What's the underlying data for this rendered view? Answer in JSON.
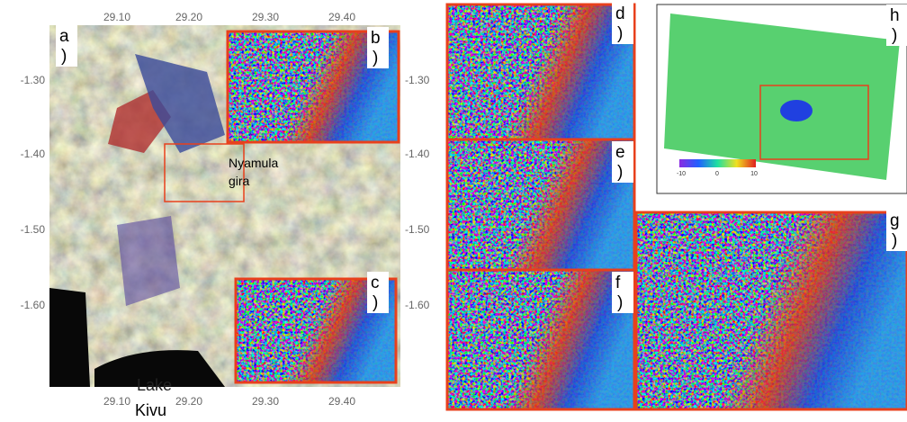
{
  "map": {
    "x_ticks_top": [
      "29.10",
      "29.20",
      "29.30",
      "29.40"
    ],
    "x_ticks_bottom": [
      "29.10",
      "29.20",
      "29.30",
      "29.40"
    ],
    "y_ticks_left": [
      "-1.30",
      "-1.40",
      "-1.50",
      "-1.60"
    ],
    "y_ticks_right": [
      "-1.30",
      "-1.40",
      "-1.50",
      "-1.60"
    ],
    "volcano": [
      "Nyamula",
      "gira"
    ],
    "lake": [
      "Lake",
      "Kivu"
    ]
  },
  "panels": [
    {
      "letter": "a",
      "close": ")"
    },
    {
      "letter": "b",
      "close": ")"
    },
    {
      "letter": "c",
      "close": ")"
    },
    {
      "letter": "d",
      "close": ")"
    },
    {
      "letter": "e",
      "close": ")"
    },
    {
      "letter": "f",
      "close": ")"
    },
    {
      "letter": "g",
      "close": ")"
    },
    {
      "letter": "h",
      "close": ")"
    }
  ],
  "colorbar": {
    "ticks": [
      "-10",
      "0",
      "10"
    ]
  }
}
